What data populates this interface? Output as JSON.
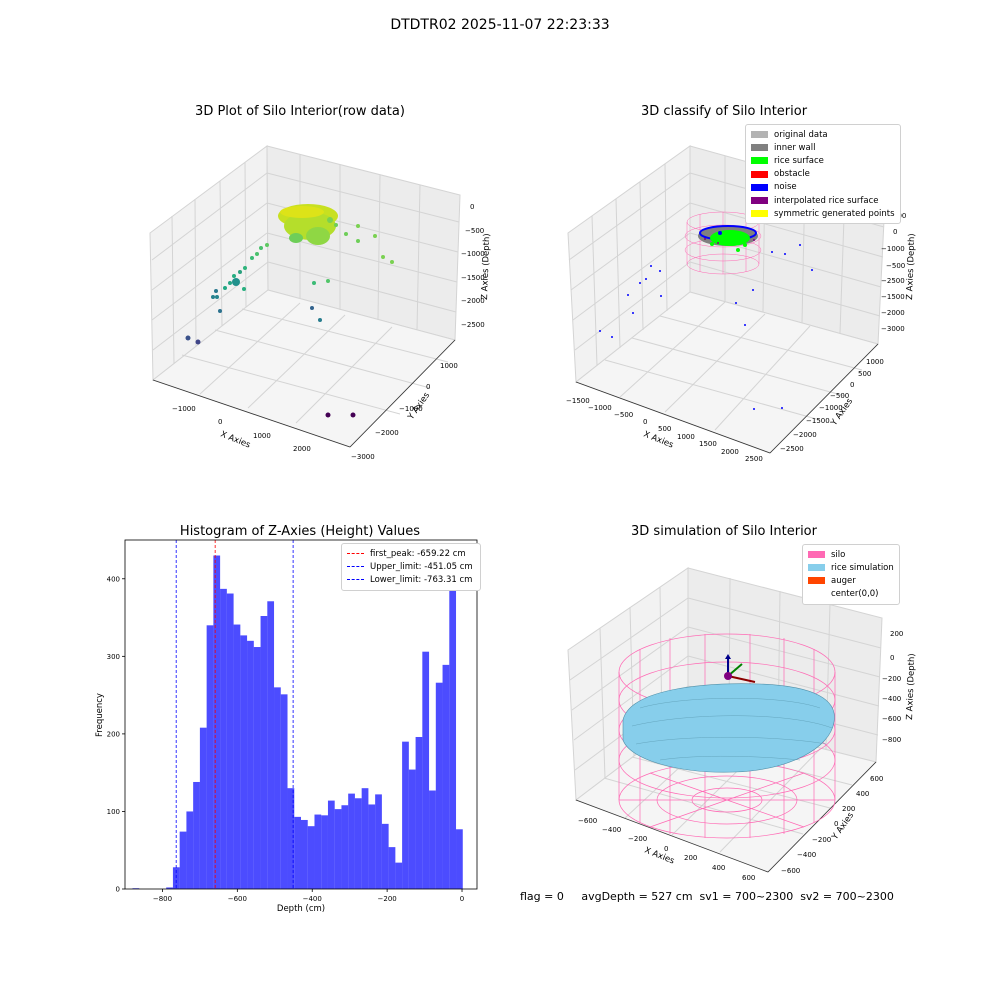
{
  "figure": {
    "suptitle": "DTDTR02 2025-11-07 22:23:33",
    "footer_text": "flag = 0     avgDepth = 527 cm  sv1 = 700~2300  sv2 = 700~2300"
  },
  "chart_data": [
    {
      "type": "scatter",
      "title": "3D Plot of Silo Interior(row data)",
      "xlabel": "X Axies",
      "ylabel": "Y Axies",
      "zlabel": "Z Axies (Depth)",
      "x_ticks": [
        "−1000",
        "0",
        "1000",
        "2000"
      ],
      "y_ticks": [
        "1000",
        "0",
        "−1000",
        "−2000",
        "−3000"
      ],
      "z_ticks": [
        "0",
        "−500",
        "−1000",
        "−1500",
        "−2000",
        "−2500"
      ],
      "colormap": "viridis"
    },
    {
      "type": "scatter",
      "title": "3D classify of Silo Interior",
      "xlabel": "X Axies",
      "ylabel": "Y Axies",
      "zlabel": "Z Axies (Depth)",
      "x_ticks": [
        "−1500",
        "−1000",
        "−500",
        "0",
        "500",
        "1000",
        "1500",
        "2000",
        "2500"
      ],
      "y_ticks": [
        "1000",
        "500",
        "0",
        "−500",
        "−1000",
        "−1500",
        "−2000",
        "−2500"
      ],
      "z_ticks": [
        "500",
        "0",
        "−500",
        "−1000",
        "−1500",
        "−2000",
        "−2500",
        "−3000"
      ],
      "legend": [
        {
          "label": "original data",
          "color": "#b3b3b3"
        },
        {
          "label": "inner wall",
          "color": "#808080"
        },
        {
          "label": "rice surface",
          "color": "#00ff00"
        },
        {
          "label": "obstacle",
          "color": "#ff0000"
        },
        {
          "label": "noise",
          "color": "#0000ff"
        },
        {
          "label": "interpolated rice surface",
          "color": "#800080"
        },
        {
          "label": "symmetric generated points",
          "color": "#ffff00"
        }
      ]
    },
    {
      "type": "bar",
      "title": "Histogram of Z-Axies (Height) Values",
      "xlabel": "Depth (cm)",
      "ylabel": "Frequency",
      "xlim": [
        -900,
        40
      ],
      "ylim": [
        0,
        450
      ],
      "x_ticks": [
        -800,
        -600,
        -400,
        -200,
        0
      ],
      "x_tick_labels": [
        "−800",
        "−600",
        "−400",
        "−200",
        "0"
      ],
      "y_ticks": [
        0,
        100,
        200,
        300,
        400
      ],
      "bar_color": "#0000ff",
      "bin_width": 18,
      "bins": [
        {
          "x": -871,
          "value": 1
        },
        {
          "x": -781,
          "value": 2
        },
        {
          "x": -763,
          "value": 28
        },
        {
          "x": -745,
          "value": 74
        },
        {
          "x": -727,
          "value": 100
        },
        {
          "x": -709,
          "value": 138
        },
        {
          "x": -691,
          "value": 208
        },
        {
          "x": -673,
          "value": 340
        },
        {
          "x": -655,
          "value": 430
        },
        {
          "x": -637,
          "value": 387
        },
        {
          "x": -619,
          "value": 381
        },
        {
          "x": -601,
          "value": 341
        },
        {
          "x": -583,
          "value": 327
        },
        {
          "x": -565,
          "value": 320
        },
        {
          "x": -547,
          "value": 312
        },
        {
          "x": -529,
          "value": 352
        },
        {
          "x": -511,
          "value": 371
        },
        {
          "x": -493,
          "value": 260
        },
        {
          "x": -475,
          "value": 251
        },
        {
          "x": -457,
          "value": 130
        },
        {
          "x": -439,
          "value": 93
        },
        {
          "x": -421,
          "value": 89
        },
        {
          "x": -403,
          "value": 81
        },
        {
          "x": -385,
          "value": 96
        },
        {
          "x": -367,
          "value": 95
        },
        {
          "x": -349,
          "value": 114
        },
        {
          "x": -331,
          "value": 103
        },
        {
          "x": -313,
          "value": 108
        },
        {
          "x": -295,
          "value": 123
        },
        {
          "x": -277,
          "value": 117
        },
        {
          "x": -259,
          "value": 130
        },
        {
          "x": -241,
          "value": 109
        },
        {
          "x": -223,
          "value": 122
        },
        {
          "x": -205,
          "value": 84
        },
        {
          "x": -187,
          "value": 54
        },
        {
          "x": -169,
          "value": 34
        },
        {
          "x": -151,
          "value": 190
        },
        {
          "x": -133,
          "value": 154
        },
        {
          "x": -115,
          "value": 196
        },
        {
          "x": -97,
          "value": 306
        },
        {
          "x": -79,
          "value": 127
        },
        {
          "x": -61,
          "value": 266
        },
        {
          "x": -43,
          "value": 289
        },
        {
          "x": -25,
          "value": 385
        },
        {
          "x": -7,
          "value": 77
        }
      ],
      "reference_lines": [
        {
          "label": "first_peak: -659.22 cm",
          "x": -659.22,
          "color": "#ff0000"
        },
        {
          "label": "Upper_limit: -451.05 cm",
          "x": -451.05,
          "color": "#0000ff"
        },
        {
          "label": "Lower_limit: -763.31 cm",
          "x": -763.31,
          "color": "#0000ff"
        }
      ],
      "legend_position": "upper right"
    },
    {
      "type": "surface",
      "title": "3D simulation of Silo Interior",
      "xlabel": "X Axies",
      "ylabel": "Y Axies",
      "zlabel": "Z Axies (Depth)",
      "x_ticks": [
        "−600",
        "−400",
        "−200",
        "0",
        "200",
        "400",
        "600"
      ],
      "y_ticks": [
        "600",
        "400",
        "200",
        "0",
        "−200",
        "−400",
        "−600"
      ],
      "z_ticks": [
        "200",
        "0",
        "−200",
        "−400",
        "−600",
        "−800"
      ],
      "legend": [
        {
          "label": "silo",
          "color": "#ff69b4"
        },
        {
          "label": "rice simulation",
          "color": "#87ceeb"
        },
        {
          "label": "auger",
          "color": "#ff4500"
        },
        {
          "label": "center(0,0)",
          "color": "none"
        }
      ]
    }
  ]
}
